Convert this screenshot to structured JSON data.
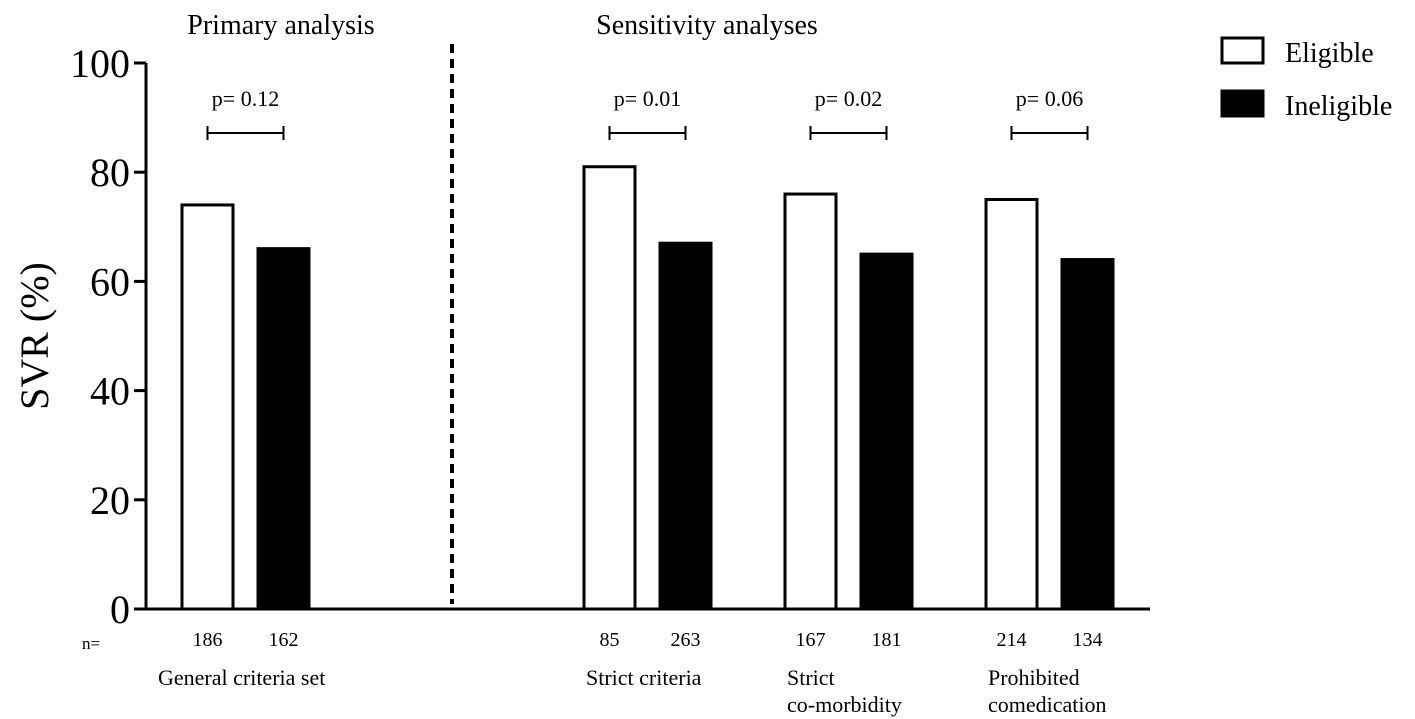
{
  "chart_data": {
    "type": "bar",
    "ylabel": "SVR (%)",
    "ylim": [
      0,
      100
    ],
    "yticks": [
      "0",
      "20",
      "40",
      "60",
      "80",
      "100"
    ],
    "grid": false,
    "legend_position": "top-right",
    "n_label": "n=",
    "sections": [
      {
        "title": "Primary analysis"
      },
      {
        "title": "Sensitivity analyses"
      }
    ],
    "series": [
      {
        "name": "Eligible",
        "color": "#ffffff",
        "values": [
          74,
          81,
          76,
          75
        ]
      },
      {
        "name": "Ineligible",
        "color": "#000000",
        "values": [
          66,
          67,
          65,
          64
        ]
      }
    ],
    "groups": [
      {
        "label_lines": [
          "General criteria set"
        ],
        "p_value": "p= 0.12",
        "n": [
          "186",
          "162"
        ]
      },
      {
        "label_lines": [
          "Strict criteria"
        ],
        "p_value": "p= 0.01",
        "n": [
          "85",
          "263"
        ]
      },
      {
        "label_lines": [
          "Strict",
          "co-morbidity"
        ],
        "p_value": "p= 0.02",
        "n": [
          "167",
          "181"
        ]
      },
      {
        "label_lines": [
          "Prohibited",
          "comedication"
        ],
        "p_value": "p= 0.06",
        "n": [
          "214",
          "134"
        ]
      }
    ]
  }
}
